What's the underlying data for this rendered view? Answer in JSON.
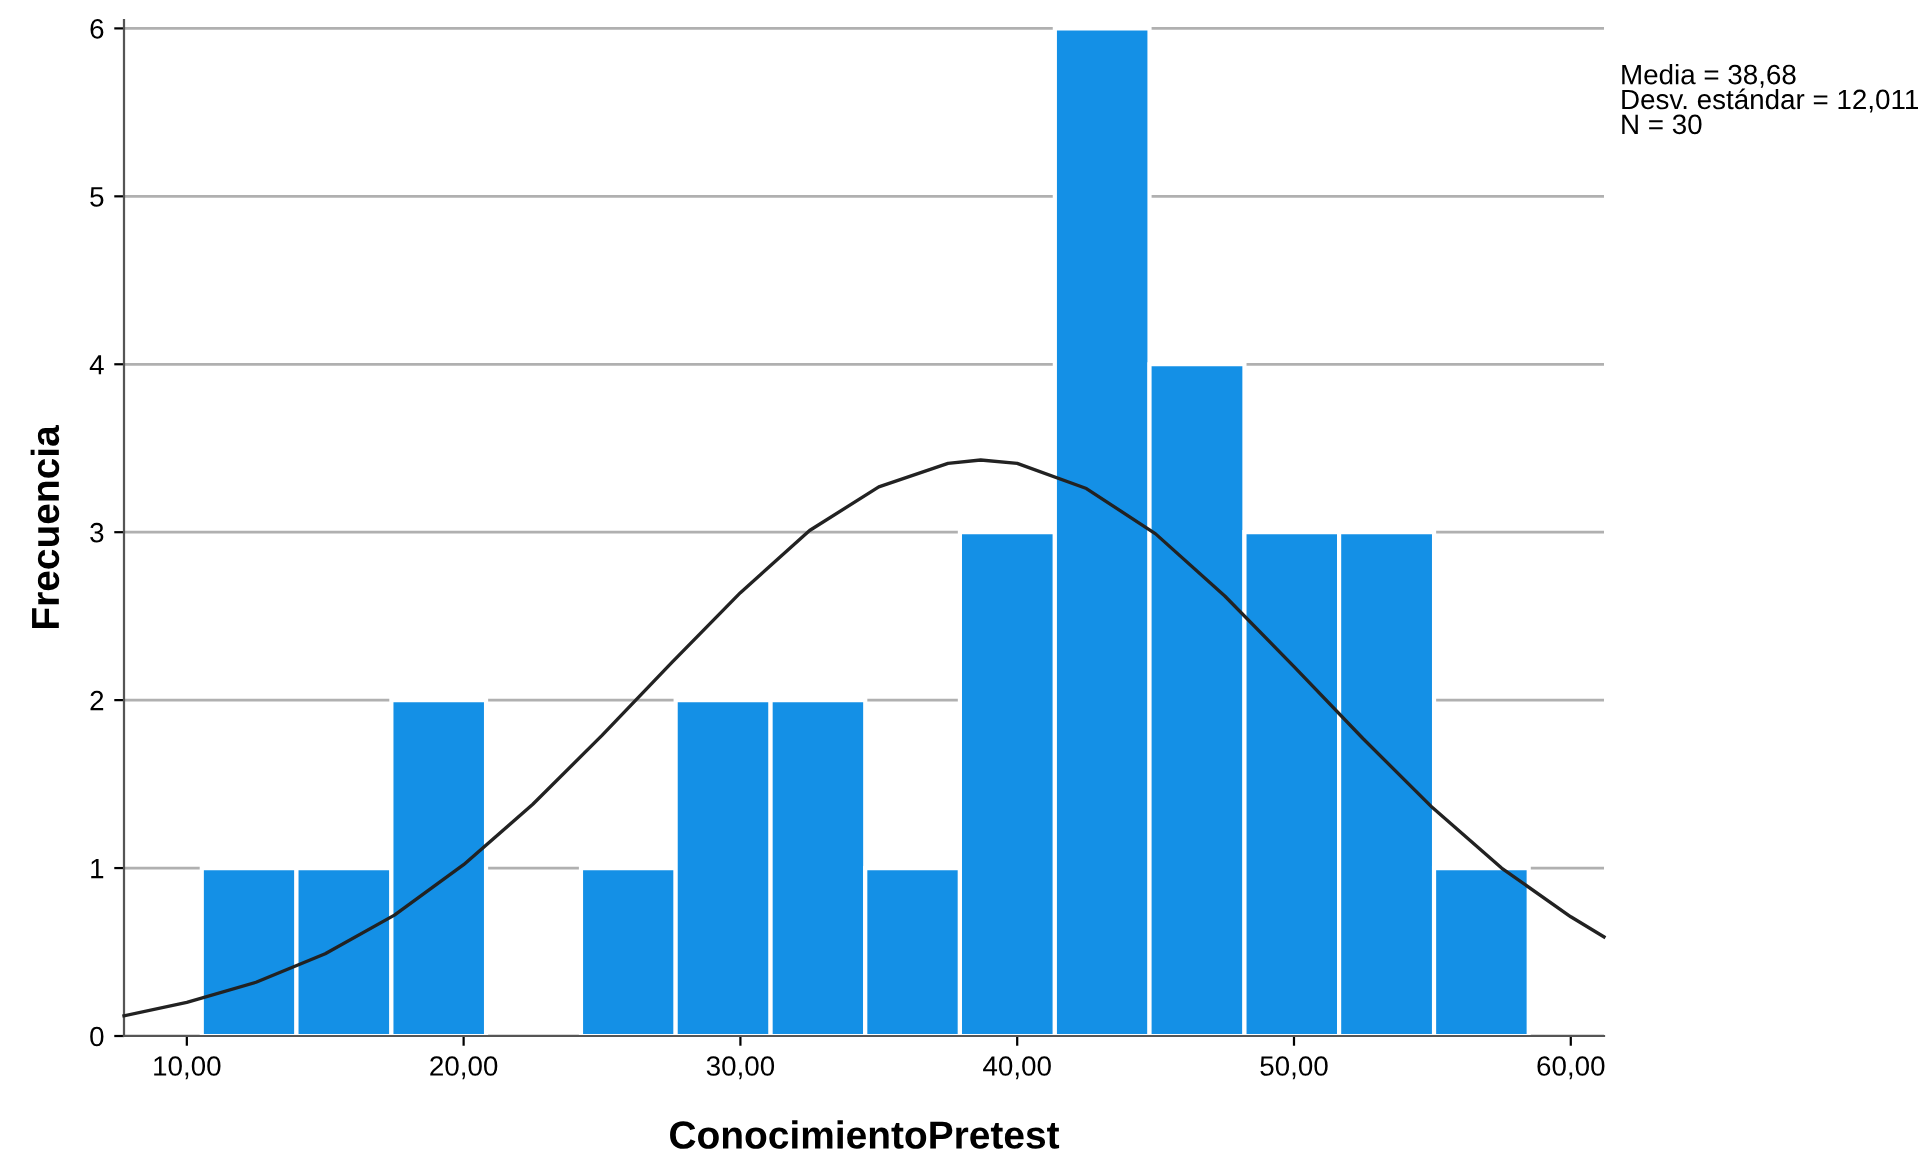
{
  "chart_data": {
    "type": "histogram",
    "xlabel": "ConocimientoPretest",
    "ylabel": "Frecuencia",
    "bins": [
      10.54,
      13.96,
      17.39,
      20.81,
      24.24,
      27.66,
      31.09,
      34.51,
      37.93,
      41.36,
      44.78,
      48.21,
      51.63,
      55.06,
      58.48
    ],
    "values": [
      1,
      1,
      2,
      0,
      1,
      2,
      2,
      1,
      3,
      6,
      4,
      3,
      3,
      1
    ],
    "color": "#1490e6",
    "series": [
      {
        "type": "line",
        "color": "#222222",
        "x": [
          7.73,
          10,
          12.5,
          15,
          17.5,
          20,
          22.5,
          25,
          27.5,
          30,
          32.5,
          35,
          37.5,
          38.68,
          40,
          42.5,
          45,
          47.5,
          50,
          52.5,
          55,
          57.5,
          60,
          61.2
        ],
        "values": [
          0.12,
          0.2,
          0.32,
          0.49,
          0.72,
          1.02,
          1.38,
          1.79,
          2.22,
          2.64,
          3.01,
          3.27,
          3.41,
          3.43,
          3.41,
          3.26,
          2.99,
          2.62,
          2.2,
          1.77,
          1.36,
          1.0,
          0.71,
          0.59
        ]
      }
    ],
    "xlim": [
      7.73,
      61.2
    ],
    "ylim": [
      0,
      6.05
    ],
    "xticks": [
      {
        "value": 10,
        "label": "10,00"
      },
      {
        "value": 20,
        "label": "20,00"
      },
      {
        "value": 30,
        "label": "30,00"
      },
      {
        "value": 40,
        "label": "40,00"
      },
      {
        "value": 50,
        "label": "50,00"
      },
      {
        "value": 60,
        "label": "60,00"
      }
    ],
    "yticks": [
      0,
      1,
      2,
      3,
      4,
      5,
      6
    ],
    "grid": "y",
    "annotations": [
      "Media = 38,68\nDesv. estándar = 12,011\nN = 30"
    ]
  }
}
